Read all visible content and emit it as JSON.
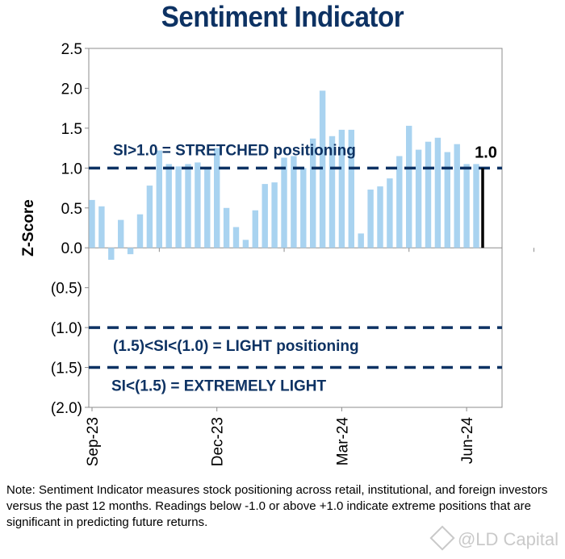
{
  "chart_data": {
    "type": "bar",
    "title": "Sentiment Indicator",
    "ylabel": "Z-Score",
    "ylim": [
      -2.0,
      2.5
    ],
    "y_ticks": [
      {
        "value": 2.5,
        "label": "2.5"
      },
      {
        "value": 2.0,
        "label": "2.0"
      },
      {
        "value": 1.5,
        "label": "1.5"
      },
      {
        "value": 1.0,
        "label": "1.0"
      },
      {
        "value": 0.5,
        "label": "0.5"
      },
      {
        "value": 0.0,
        "label": "0.0"
      },
      {
        "value": -0.5,
        "label": "(0.5)"
      },
      {
        "value": -1.0,
        "label": "(1.0)"
      },
      {
        "value": -1.5,
        "label": "(1.5)"
      },
      {
        "value": -2.0,
        "label": "(2.0)"
      }
    ],
    "x_ticks": [
      {
        "index": 0,
        "label": "Sep-23"
      },
      {
        "index": 13,
        "label": "Dec-23"
      },
      {
        "index": 26,
        "label": "Mar-24"
      },
      {
        "index": 39,
        "label": "Jun-24"
      }
    ],
    "values": [
      0.6,
      0.52,
      -0.15,
      0.35,
      -0.08,
      0.42,
      0.78,
      1.22,
      1.05,
      1.02,
      1.05,
      1.07,
      1.0,
      1.25,
      0.5,
      0.26,
      0.1,
      0.47,
      0.8,
      0.82,
      1.13,
      1.15,
      1.0,
      1.37,
      1.97,
      1.4,
      1.48,
      1.48,
      0.18,
      0.73,
      0.77,
      0.87,
      1.15,
      1.53,
      1.23,
      1.33,
      1.38,
      1.2,
      1.3,
      1.05,
      1.05
    ],
    "bar_color": "#a9d3f0",
    "thresholds": [
      {
        "value": 1.0,
        "label": "SI>1.0 = STRETCHED positioning"
      },
      {
        "value": -1.0,
        "label": "(1.5)<SI<(1.0) = LIGHT positioning"
      },
      {
        "value": -1.5,
        "label": "SI<(1.5) = EXTREMELY LIGHT"
      }
    ],
    "threshold_color": "#0d3263",
    "latest": {
      "value": 1.0,
      "label": "1.0"
    }
  },
  "note": "Note: Sentiment Indicator measures stock positioning across retail, institutional, and foreign investors versus the past 12 months. Readings below -1.0 or above +1.0 indicate extreme positions that are significant in predicting future returns.",
  "watermark": "@LD Capital"
}
